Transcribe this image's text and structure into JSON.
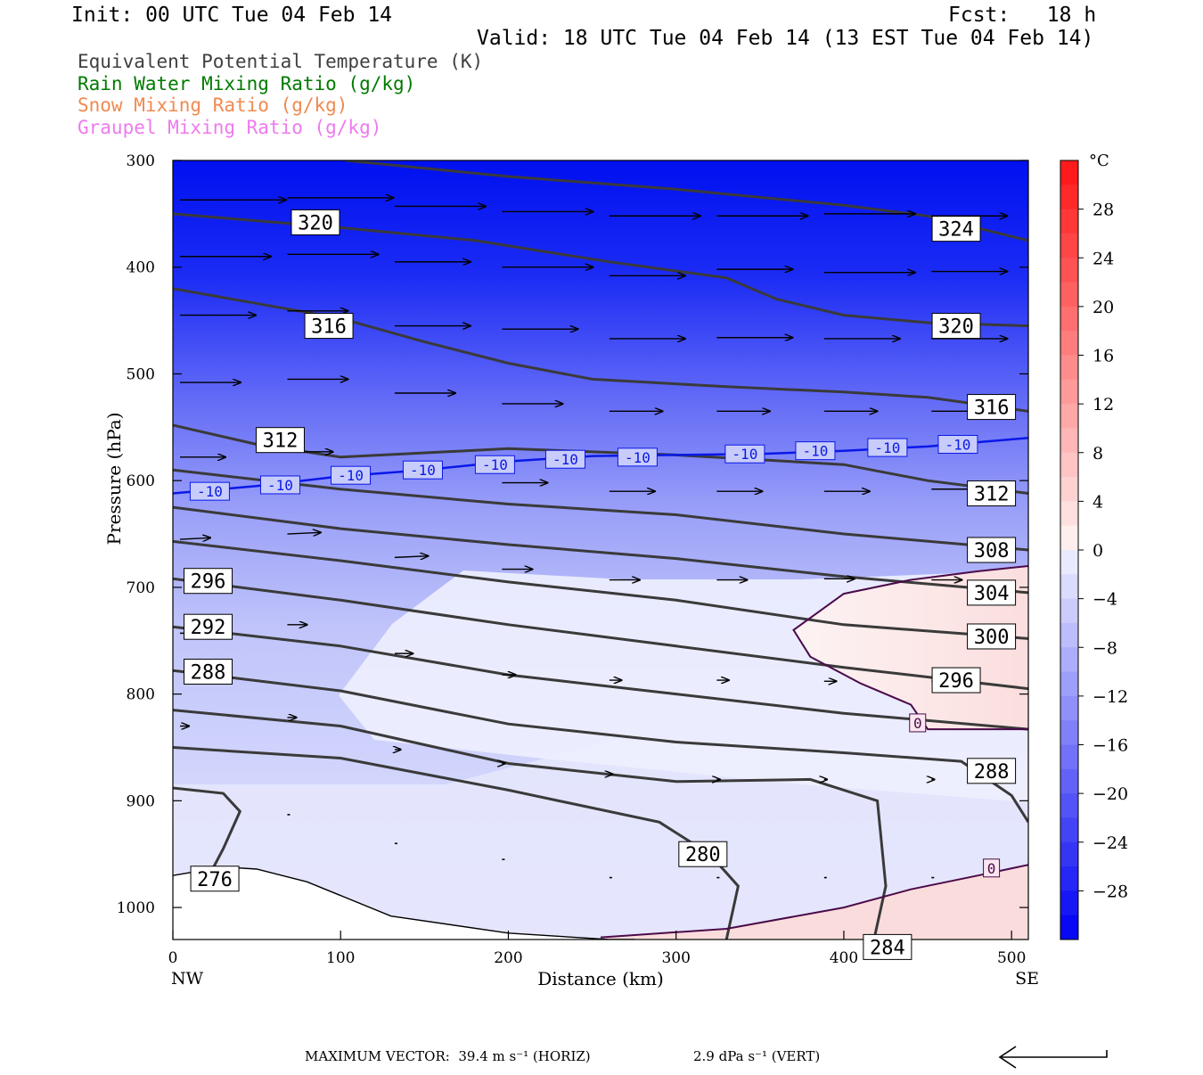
{
  "header": {
    "init": "Init: 00 UTC Tue 04 Feb 14",
    "fcst": "Fcst:   18 h",
    "valid": "Valid: 18 UTC Tue 04 Feb 14 (13 EST Tue 04 Feb 14)"
  },
  "legend": [
    {
      "label": "Equivalent Potential Temperature (K)",
      "color": "#404040"
    },
    {
      "label": "Rain Water Mixing Ratio (g/kg)",
      "color": "#007a00"
    },
    {
      "label": "Snow Mixing Ratio (g/kg)",
      "color": "#f08a50"
    },
    {
      "label": "Graupel Mixing Ratio (g/kg)",
      "color": "#ee7aee"
    }
  ],
  "chart_data": {
    "type": "cross-section",
    "xlabel": "Distance (km)",
    "ylabel": "Pressure (hPa)",
    "xlim": [
      0,
      510
    ],
    "ylim": [
      1030,
      300
    ],
    "x_ticks": [
      0,
      100,
      200,
      300,
      400,
      500
    ],
    "y_ticks": [
      300,
      400,
      500,
      600,
      700,
      800,
      900,
      1000
    ],
    "x_end_labels": {
      "left": "NW",
      "right": "SE"
    },
    "colorbar": {
      "unit": "°C",
      "ticks": [
        28,
        24,
        20,
        16,
        12,
        8,
        4,
        0,
        -4,
        -8,
        -12,
        -16,
        -20,
        -24,
        -28
      ],
      "range": [
        -32,
        32
      ]
    },
    "theta_e_contours": [
      {
        "value": 324,
        "x": [
          103,
          200,
          300,
          400,
          450,
          510
        ],
        "p": [
          300,
          315,
          327,
          342,
          352,
          375
        ]
      },
      {
        "value": 320,
        "x": [
          0,
          100,
          180,
          260,
          330,
          360,
          400,
          450,
          510
        ],
        "p": [
          350,
          363,
          375,
          395,
          410,
          430,
          445,
          452,
          455
        ]
      },
      {
        "value": 316,
        "x": [
          0,
          100,
          150,
          200,
          250,
          330,
          400,
          450,
          510
        ],
        "p": [
          420,
          448,
          470,
          490,
          505,
          512,
          517,
          522,
          535
        ]
      },
      {
        "value": 312,
        "x": [
          0,
          50,
          100,
          200,
          300,
          400,
          450,
          510
        ],
        "p": [
          548,
          566,
          578,
          570,
          576,
          585,
          600,
          612
        ]
      },
      {
        "value": 308,
        "x": [
          0,
          100,
          200,
          300,
          400,
          510
        ],
        "p": [
          590,
          608,
          622,
          632,
          650,
          665
        ]
      },
      {
        "value": 304,
        "x": [
          0,
          100,
          200,
          300,
          400,
          510
        ],
        "p": [
          625,
          645,
          660,
          673,
          690,
          705
        ]
      },
      {
        "value": 300,
        "x": [
          0,
          100,
          200,
          300,
          400,
          510
        ],
        "p": [
          657,
          675,
          695,
          712,
          735,
          748
        ]
      },
      {
        "value": 296,
        "x": [
          0,
          100,
          200,
          300,
          400,
          510
        ],
        "p": [
          692,
          712,
          735,
          755,
          775,
          795
        ]
      },
      {
        "value": 292,
        "x": [
          0,
          100,
          200,
          300,
          400,
          510
        ],
        "p": [
          737,
          755,
          782,
          800,
          818,
          833
        ]
      },
      {
        "value": 288,
        "x": [
          0,
          100,
          200,
          300,
          400,
          470,
          500,
          510
        ],
        "p": [
          778,
          797,
          828,
          845,
          855,
          863,
          895,
          920
        ]
      },
      {
        "value": 284,
        "x": [
          0,
          100,
          200,
          300,
          380,
          420,
          425,
          418
        ],
        "p": [
          815,
          830,
          865,
          882,
          880,
          900,
          980,
          1030
        ]
      },
      {
        "value": 280,
        "x": [
          0,
          100,
          200,
          290,
          320,
          337,
          330
        ],
        "p": [
          850,
          860,
          890,
          920,
          950,
          980,
          1030
        ]
      },
      {
        "value": 276,
        "x": [
          0,
          30,
          40,
          30,
          20
        ],
        "p": [
          888,
          893,
          910,
          945,
          975
        ]
      }
    ],
    "theta_e_labels": [
      {
        "text": "324",
        "x": 467,
        "p": 364
      },
      {
        "text": "320",
        "x": 85,
        "p": 358
      },
      {
        "text": "320",
        "x": 467,
        "p": 455
      },
      {
        "text": "316",
        "x": 93,
        "p": 455
      },
      {
        "text": "316",
        "x": 488,
        "p": 531
      },
      {
        "text": "312",
        "x": 64,
        "p": 562
      },
      {
        "text": "312",
        "x": 488,
        "p": 612
      },
      {
        "text": "308",
        "x": 488,
        "p": 665
      },
      {
        "text": "304",
        "x": 488,
        "p": 705
      },
      {
        "text": "300",
        "x": 488,
        "p": 746
      },
      {
        "text": "296",
        "x": 21,
        "p": 694
      },
      {
        "text": "296",
        "x": 467,
        "p": 787
      },
      {
        "text": "292",
        "x": 21,
        "p": 737
      },
      {
        "text": "288",
        "x": 21,
        "p": 779
      },
      {
        "text": "288",
        "x": 488,
        "p": 872
      },
      {
        "text": "280",
        "x": 316,
        "p": 950
      },
      {
        "text": "284",
        "x": 426,
        "p": 1037
      },
      {
        "text": "276",
        "x": 25,
        "p": 973
      }
    ],
    "isotherm_minus10": {
      "x": [
        0,
        50,
        100,
        150,
        200,
        250,
        300,
        350,
        400,
        450,
        510
      ],
      "p": [
        612,
        605,
        596,
        590,
        582,
        577,
        576,
        575,
        572,
        568,
        560
      ],
      "label": "-10",
      "label_positions": [
        {
          "x": 22,
          "p": 610
        },
        {
          "x": 64,
          "p": 604
        },
        {
          "x": 106,
          "p": 595
        },
        {
          "x": 149,
          "p": 590
        },
        {
          "x": 192,
          "p": 585
        },
        {
          "x": 234,
          "p": 580
        },
        {
          "x": 277,
          "p": 578
        },
        {
          "x": 341,
          "p": 575
        },
        {
          "x": 383,
          "p": 572
        },
        {
          "x": 426,
          "p": 569
        },
        {
          "x": 468,
          "p": 566
        }
      ]
    },
    "isotherm_zero": [
      {
        "x": [
          510,
          480,
          440,
          400,
          370,
          380,
          410,
          440,
          450,
          510
        ],
        "p": [
          680,
          685,
          693,
          706,
          740,
          765,
          790,
          810,
          833,
          833
        ]
      },
      {
        "x": [
          255,
          330,
          400,
          440,
          480,
          510
        ],
        "p": [
          1028,
          1020,
          1000,
          983,
          970,
          960
        ]
      }
    ],
    "zero_labels": [
      {
        "text": "0",
        "x": 444,
        "p": 827
      },
      {
        "text": "0",
        "x": 488,
        "p": 963
      }
    ],
    "terrain": {
      "x": [
        0,
        30,
        50,
        80,
        130,
        200,
        260,
        275
      ],
      "p": [
        970,
        962,
        964,
        976,
        1008,
        1024,
        1030,
        1030
      ]
    },
    "wind_vectors": [
      {
        "x": 0,
        "p": 337,
        "u": 7,
        "w": 0
      },
      {
        "x": 64,
        "p": 335,
        "u": 7,
        "w": 0
      },
      {
        "x": 128,
        "p": 343,
        "u": 6,
        "w": 0
      },
      {
        "x": 192,
        "p": 348,
        "u": 6,
        "w": 0
      },
      {
        "x": 256,
        "p": 352,
        "u": 6,
        "w": 0
      },
      {
        "x": 320,
        "p": 352,
        "u": 6,
        "w": 0
      },
      {
        "x": 384,
        "p": 350,
        "u": 6,
        "w": 0
      },
      {
        "x": 448,
        "p": 352,
        "u": 5,
        "w": 0
      },
      {
        "x": 0,
        "p": 390,
        "u": 6,
        "w": 0
      },
      {
        "x": 64,
        "p": 388,
        "u": 6,
        "w": 0
      },
      {
        "x": 128,
        "p": 395,
        "u": 5,
        "w": 0
      },
      {
        "x": 192,
        "p": 400,
        "u": 6,
        "w": 0
      },
      {
        "x": 256,
        "p": 408,
        "u": 5,
        "w": 0
      },
      {
        "x": 320,
        "p": 402,
        "u": 5,
        "w": 0
      },
      {
        "x": 384,
        "p": 405,
        "u": 6,
        "w": 0
      },
      {
        "x": 448,
        "p": 404,
        "u": 5,
        "w": 0
      },
      {
        "x": 0,
        "p": 445,
        "u": 5,
        "w": 0
      },
      {
        "x": 64,
        "p": 441,
        "u": 4,
        "w": 0
      },
      {
        "x": 128,
        "p": 455,
        "u": 5,
        "w": 0
      },
      {
        "x": 192,
        "p": 458,
        "u": 5,
        "w": 0
      },
      {
        "x": 256,
        "p": 467,
        "u": 5,
        "w": 0
      },
      {
        "x": 320,
        "p": 466,
        "u": 5,
        "w": 0
      },
      {
        "x": 384,
        "p": 467,
        "u": 5,
        "w": 0
      },
      {
        "x": 448,
        "p": 467,
        "u": 5,
        "w": 0
      },
      {
        "x": 0,
        "p": 508,
        "u": 4,
        "w": 0
      },
      {
        "x": 64,
        "p": 505,
        "u": 4,
        "w": 0
      },
      {
        "x": 128,
        "p": 518,
        "u": 4,
        "w": 0
      },
      {
        "x": 192,
        "p": 528,
        "u": 4,
        "w": 0
      },
      {
        "x": 256,
        "p": 535,
        "u": 3.5,
        "w": 0
      },
      {
        "x": 320,
        "p": 535,
        "u": 3.5,
        "w": 0
      },
      {
        "x": 384,
        "p": 535,
        "u": 3.5,
        "w": 0
      },
      {
        "x": 448,
        "p": 535,
        "u": 3.5,
        "w": 0
      },
      {
        "x": 0,
        "p": 578,
        "u": 3,
        "w": 0
      },
      {
        "x": 64,
        "p": 573,
        "u": 3,
        "w": 0
      },
      {
        "x": 192,
        "p": 602,
        "u": 3,
        "w": 0
      },
      {
        "x": 256,
        "p": 610,
        "u": 3,
        "w": 0
      },
      {
        "x": 320,
        "p": 610,
        "u": 3,
        "w": 0
      },
      {
        "x": 384,
        "p": 610,
        "u": 3,
        "w": 0
      },
      {
        "x": 448,
        "p": 608,
        "u": 3,
        "w": 0
      },
      {
        "x": 0,
        "p": 655,
        "u": 2,
        "w": 0.1
      },
      {
        "x": 64,
        "p": 650,
        "u": 2.2,
        "w": 0.1
      },
      {
        "x": 128,
        "p": 672,
        "u": 2.2,
        "w": 0.1
      },
      {
        "x": 192,
        "p": 683,
        "u": 2,
        "w": 0
      },
      {
        "x": 256,
        "p": 693,
        "u": 2,
        "w": 0
      },
      {
        "x": 320,
        "p": 693,
        "u": 2,
        "w": 0
      },
      {
        "x": 384,
        "p": 692,
        "u": 2,
        "w": 0
      },
      {
        "x": 448,
        "p": 693,
        "u": 2,
        "w": 0
      },
      {
        "x": 0,
        "p": 743,
        "u": 1,
        "w": 0
      },
      {
        "x": 64,
        "p": 735,
        "u": 1.3,
        "w": 0
      },
      {
        "x": 128,
        "p": 762,
        "u": 1.2,
        "w": 0
      },
      {
        "x": 192,
        "p": 782,
        "u": 0.9,
        "w": 0
      },
      {
        "x": 256,
        "p": 787,
        "u": 0.8,
        "w": 0
      },
      {
        "x": 320,
        "p": 787,
        "u": 0.8,
        "w": 0
      },
      {
        "x": 384,
        "p": 788,
        "u": 0.8,
        "w": 0
      },
      {
        "x": 448,
        "p": 788,
        "u": 0.8,
        "w": 0
      },
      {
        "x": 0,
        "p": 830,
        "u": 0.6,
        "w": 0
      },
      {
        "x": 64,
        "p": 822,
        "u": 0.6,
        "w": 0
      },
      {
        "x": 128,
        "p": 852,
        "u": 0.4,
        "w": 0
      },
      {
        "x": 192,
        "p": 865,
        "u": 0.2,
        "w": 0
      },
      {
        "x": 256,
        "p": 875,
        "u": 0.2,
        "w": 0
      },
      {
        "x": 320,
        "p": 880,
        "u": 0.2,
        "w": 0
      },
      {
        "x": 384,
        "p": 880,
        "u": 0.2,
        "w": 0
      },
      {
        "x": 448,
        "p": 880,
        "u": 0.2,
        "w": 0
      },
      {
        "x": 64,
        "p": 913,
        "u": 0.1,
        "w": 0
      },
      {
        "x": 128,
        "p": 940,
        "u": 0.1,
        "w": 0
      },
      {
        "x": 192,
        "p": 955,
        "u": 0.1,
        "w": 0
      },
      {
        "x": 256,
        "p": 972,
        "u": 0.1,
        "w": 0
      },
      {
        "x": 320,
        "p": 972,
        "u": 0.1,
        "w": 0
      },
      {
        "x": 384,
        "p": 972,
        "u": 0.1,
        "w": 0
      },
      {
        "x": 448,
        "p": 972,
        "u": 0.1,
        "w": 0
      }
    ],
    "temperature_shading_note_values": [
      -28,
      -24,
      -20,
      -16,
      -12,
      -8,
      -4,
      0,
      4
    ]
  },
  "footer": {
    "max_vector": "MAXIMUM VECTOR:  39.4 m s⁻¹ (HORIZ)",
    "vert": "2.9 dPa s⁻¹ (VERT)"
  }
}
